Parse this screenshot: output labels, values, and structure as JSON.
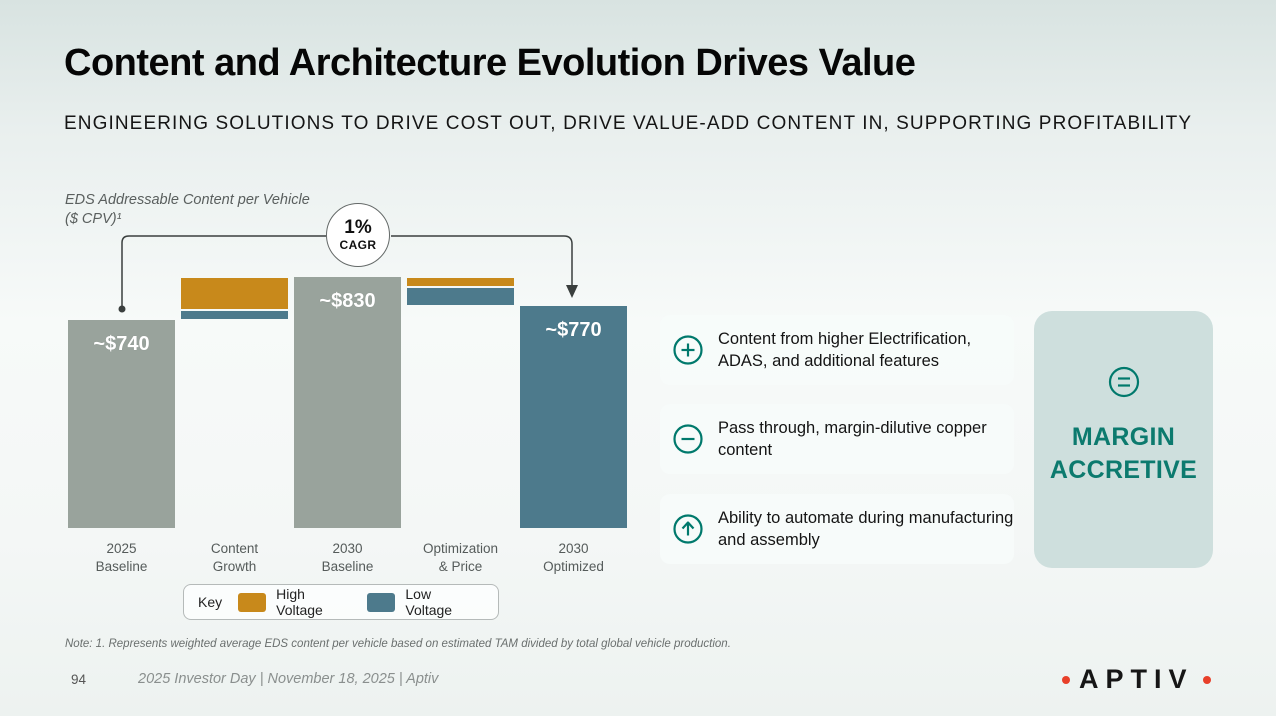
{
  "slide": {
    "title": "Content and Architecture Evolution Drives Value",
    "subtitle": "ENGINEERING SOLUTIONS TO DRIVE COST OUT, DRIVE VALUE-ADD CONTENT IN, SUPPORTING PROFITABILITY",
    "footnote": "Note: 1. Represents weighted average EDS content per vehicle based on estimated TAM divided by total global vehicle production.",
    "page_number": "94",
    "footer_text": "2025 Investor Day | November 18, 2025 | Aptiv",
    "brand": {
      "logo_text": "APTIV",
      "dot_color": "#e8402a"
    }
  },
  "chart": {
    "label_line1": "EDS Addressable Content per Vehicle",
    "label_line2": "($ CPV)¹"
  },
  "chart_data": {
    "type": "waterfall",
    "title": "EDS Addressable Content per Vehicle ($ CPV)",
    "unit": "USD content per vehicle",
    "categories": [
      "2025\nBaseline",
      "Content\nGrowth",
      "2030\nBaseline",
      "Optimization\n& Price",
      "2030\nOptimized"
    ],
    "cagr": {
      "value": "1%",
      "label": "CAGR",
      "from": "2025 Baseline",
      "to": "2030 Optimized"
    },
    "ylim_displayed": [
      300,
      860
    ],
    "colors": {
      "gray": "#99a39c",
      "teal": "#4d7a8c",
      "hv": "#c8891b",
      "lv": "#4d7a8c"
    },
    "bars": [
      {
        "name": "2025 Baseline",
        "kind": "total",
        "value": 740,
        "label": "~$740",
        "color": "gray"
      },
      {
        "name": "Content Growth",
        "kind": "bridge",
        "base": 740,
        "segments": [
          {
            "legend": "Low Voltage",
            "delta": 20,
            "color": "lv"
          },
          {
            "legend": "High Voltage",
            "delta": 70,
            "color": "hv"
          }
        ]
      },
      {
        "name": "2030 Baseline",
        "kind": "total",
        "value": 830,
        "label": "~$830",
        "color": "gray"
      },
      {
        "name": "Optimization & Price",
        "kind": "bridge",
        "base": 830,
        "segments": [
          {
            "legend": "High Voltage",
            "delta": -20,
            "color": "hv"
          },
          {
            "legend": "Low Voltage",
            "delta": -40,
            "color": "lv"
          }
        ]
      },
      {
        "name": "2030 Optimized",
        "kind": "total",
        "value": 770,
        "label": "~$770",
        "color": "teal"
      }
    ],
    "legend": {
      "key_label": "Key",
      "items": [
        {
          "label": "High Voltage",
          "color": "#c8891b"
        },
        {
          "label": "Low Voltage",
          "color": "#4d7a8c"
        }
      ]
    }
  },
  "callouts": [
    {
      "icon": "plus-circle-icon",
      "text": "Content from higher Electrification, ADAS, and additional features"
    },
    {
      "icon": "minus-circle-icon",
      "text": "Pass through, margin-dilutive copper content"
    },
    {
      "icon": "arrow-up-circle-icon",
      "text": "Ability to automate during manufacturing and assembly"
    }
  ],
  "margin_panel": {
    "icon": "equals-circle-icon",
    "label": "MARGIN\nACCRETIVE",
    "text_color": "#0c7a6e",
    "background": "#cedfdd",
    "icon_color": "#00796c"
  }
}
